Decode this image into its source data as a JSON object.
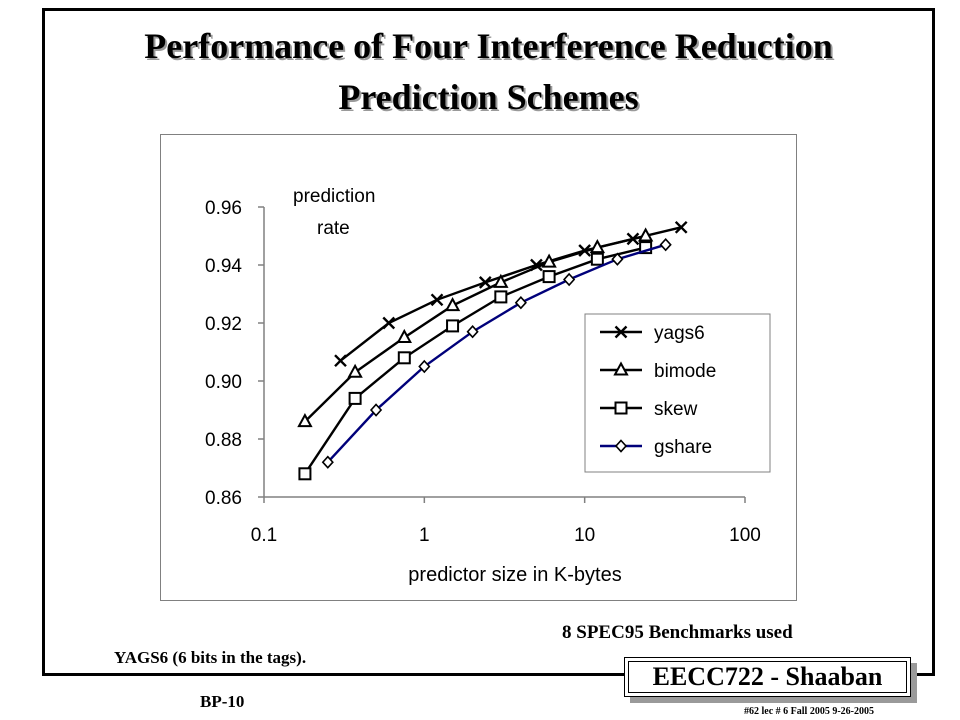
{
  "slide": {
    "title_line1": "Performance of Four Interference Reduction",
    "title_line2": "Prediction Schemes",
    "benchmark_note": "8 SPEC95 Benchmarks used",
    "yags_note": "YAGS6 (6 bits in the tags).",
    "slide_code": "BP-10",
    "badge": "EECC722 - Shaaban",
    "footer": "#62   lec # 6   Fall 2005   9-26-2005"
  },
  "chart_data": {
    "type": "line",
    "title": "",
    "xlabel": "predictor size in K-bytes",
    "ylabel_line1": "prediction",
    "ylabel_line2": "rate",
    "xscale": "log",
    "xlim": [
      0.1,
      100
    ],
    "ylim": [
      0.86,
      0.96
    ],
    "xticks": [
      0.1,
      1,
      10,
      100
    ],
    "xtick_labels": [
      "0.1",
      "1",
      "10",
      "100"
    ],
    "yticks": [
      0.86,
      0.88,
      0.9,
      0.92,
      0.94,
      0.96
    ],
    "ytick_labels": [
      "0.86",
      "0.88",
      "0.90",
      "0.92",
      "0.94",
      "0.96"
    ],
    "grid": false,
    "legend_position": "right",
    "series": [
      {
        "name": "yags6",
        "marker": "x",
        "color": "#000000",
        "x": [
          0.3,
          0.6,
          1.2,
          2.4,
          5,
          10,
          20,
          40
        ],
        "y": [
          0.907,
          0.92,
          0.928,
          0.934,
          0.94,
          0.945,
          0.949,
          0.953
        ]
      },
      {
        "name": "bimode",
        "marker": "triangle",
        "color": "#000000",
        "x": [
          0.18,
          0.37,
          0.75,
          1.5,
          3,
          6,
          12,
          24
        ],
        "y": [
          0.886,
          0.903,
          0.915,
          0.926,
          0.934,
          0.941,
          0.946,
          0.95
        ]
      },
      {
        "name": "skew",
        "marker": "square",
        "color": "#000000",
        "x": [
          0.18,
          0.37,
          0.75,
          1.5,
          3,
          6,
          12,
          24
        ],
        "y": [
          0.868,
          0.894,
          0.908,
          0.919,
          0.929,
          0.936,
          0.942,
          0.946
        ]
      },
      {
        "name": "gshare",
        "marker": "diamond",
        "color": "#00007a",
        "x": [
          0.25,
          0.5,
          1,
          2,
          4,
          8,
          16,
          32
        ],
        "y": [
          0.872,
          0.89,
          0.905,
          0.917,
          0.927,
          0.935,
          0.942,
          0.947
        ]
      }
    ]
  }
}
